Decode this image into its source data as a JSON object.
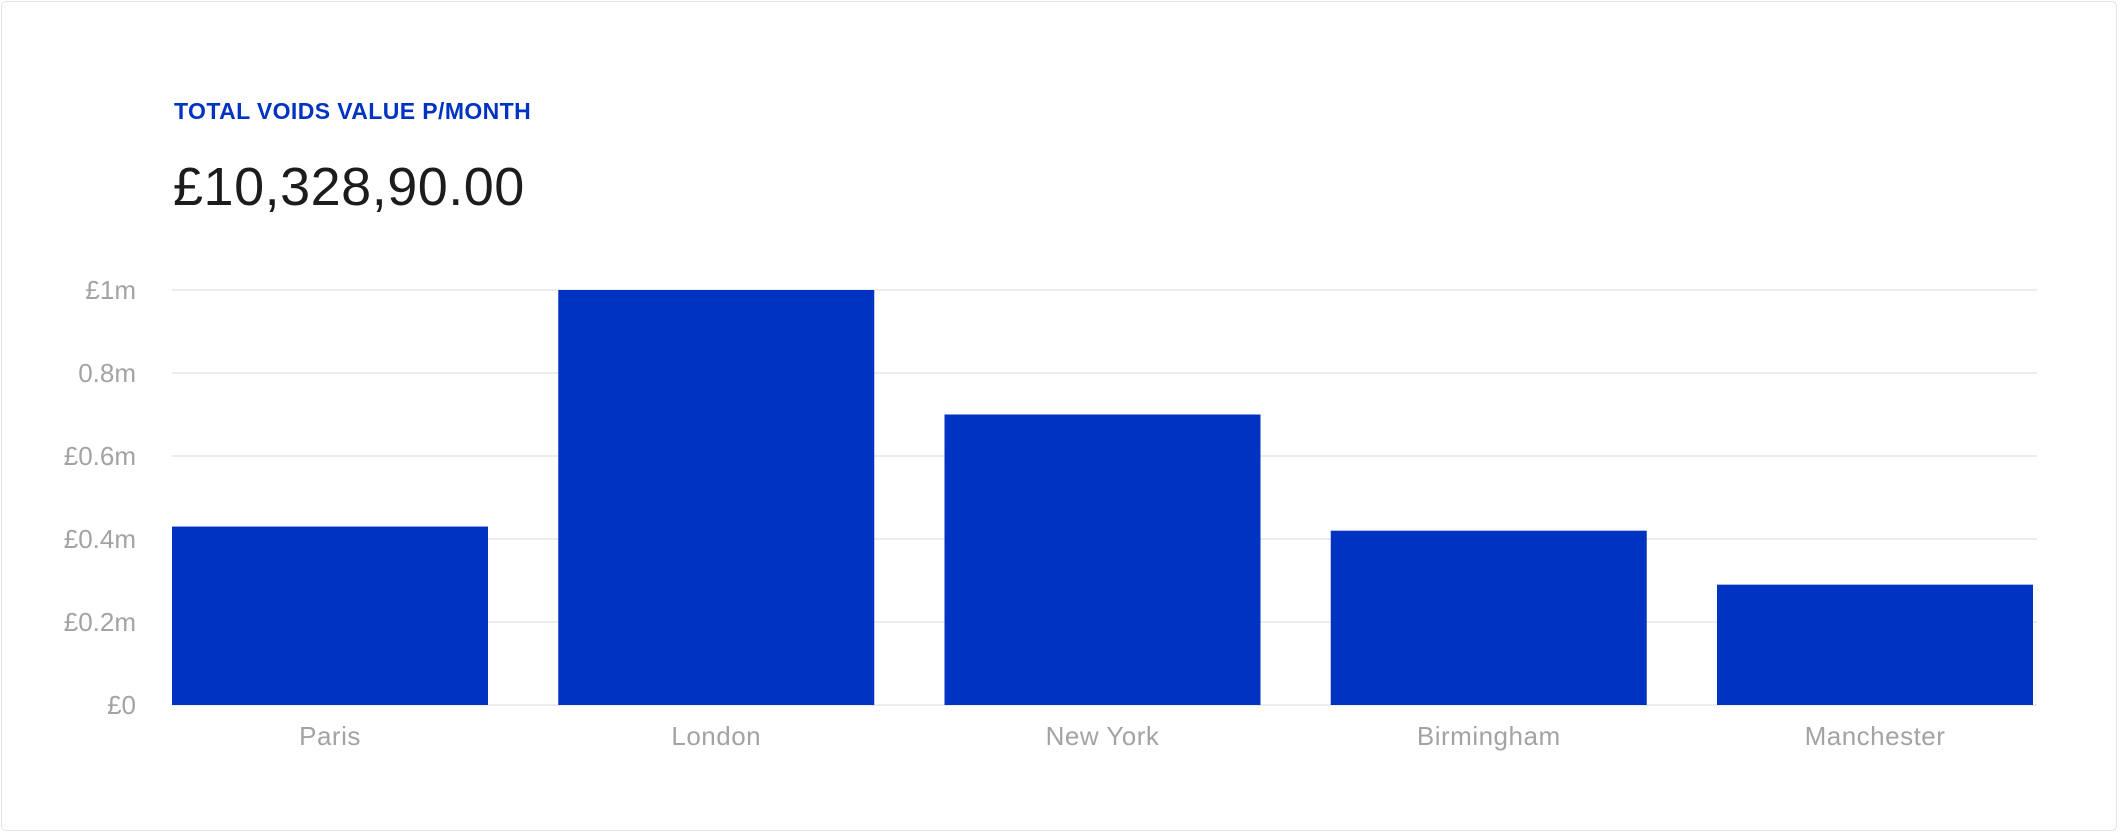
{
  "header": {
    "eyebrow": "TOTAL VOIDS VALUE P/MONTH",
    "value": "£10,328,90.00"
  },
  "colors": {
    "accent": "#0033c1",
    "bar": "#0033c1",
    "grid": "#e6e6e6",
    "tick_text": "#a3a3a3",
    "value_text": "#1c1c1c"
  },
  "chart_data": {
    "type": "bar",
    "title": "",
    "xlabel": "",
    "ylabel": "",
    "categories": [
      "Paris",
      "London",
      "New York",
      "Birmingham",
      "Manchester"
    ],
    "values": [
      0.43,
      1.0,
      0.7,
      0.42,
      0.29
    ],
    "units": "£m",
    "ylim": [
      0,
      1
    ],
    "yticks": [
      {
        "value": 0,
        "label": "£0"
      },
      {
        "value": 0.2,
        "label": "£0.2m"
      },
      {
        "value": 0.4,
        "label": "£0.4m"
      },
      {
        "value": 0.6,
        "label": "£0.6m"
      },
      {
        "value": 0.8,
        "label": "0.8m"
      },
      {
        "value": 1.0,
        "label": "£1m"
      }
    ],
    "grid": true,
    "legend": "none"
  }
}
